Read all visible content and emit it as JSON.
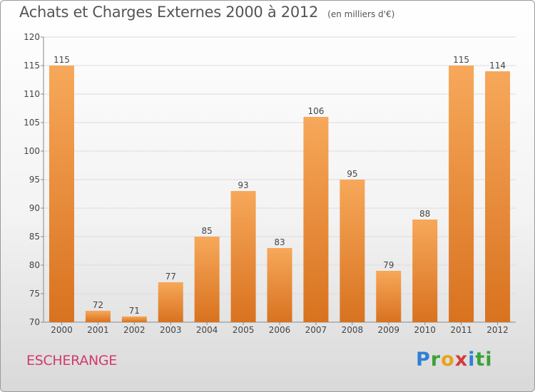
{
  "header": {
    "title": "Achats et Charges Externes 2000 à 2012",
    "unit": "(en milliers d'€)"
  },
  "footer": {
    "commune": "ESCHERANGE",
    "logo_letters": [
      "P",
      "r",
      "o",
      "x",
      "i",
      "ti"
    ]
  },
  "colors": {
    "bar_top": "#f7a85a",
    "bar_bottom": "#d8721f",
    "commune": "#d23a6e"
  },
  "chart_data": {
    "type": "bar",
    "title": "Achats et Charges Externes 2000 à 2012",
    "subtitle": "(en milliers d'€)",
    "xlabel": "",
    "ylabel": "",
    "categories": [
      "2000",
      "2001",
      "2002",
      "2003",
      "2004",
      "2005",
      "2006",
      "2007",
      "2008",
      "2009",
      "2010",
      "2011",
      "2012"
    ],
    "values": [
      115,
      72,
      71,
      77,
      85,
      93,
      83,
      106,
      95,
      79,
      88,
      115,
      114
    ],
    "ylim": [
      70,
      120
    ],
    "yticks": [
      70,
      75,
      80,
      85,
      90,
      95,
      100,
      105,
      110,
      115,
      120
    ],
    "grid": true,
    "legend": "none"
  }
}
